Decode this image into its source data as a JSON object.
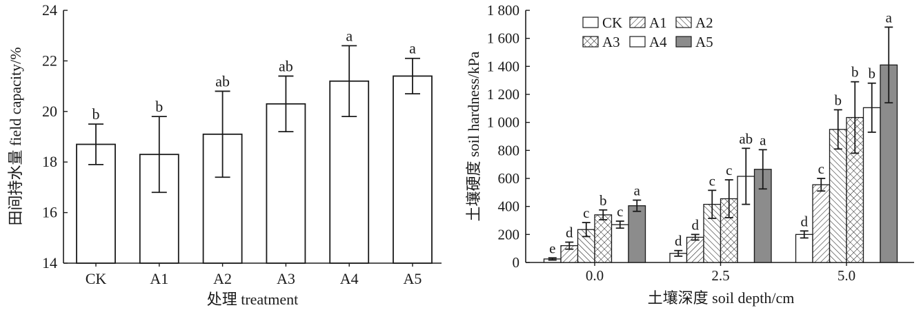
{
  "colors": {
    "ink": "#1a1a1a",
    "background": "#ffffff",
    "gray_bar": "#8c8c8c"
  },
  "chart_data": [
    {
      "type": "bar",
      "categories": [
        "CK",
        "A1",
        "A2",
        "A3",
        "A4",
        "A5"
      ],
      "values": [
        18.7,
        18.3,
        19.1,
        20.3,
        21.2,
        21.4
      ],
      "errors": [
        0.8,
        1.5,
        1.7,
        1.1,
        1.4,
        0.7
      ],
      "significance": [
        "b",
        "b",
        "ab",
        "ab",
        "a",
        "a"
      ],
      "pattern": "none",
      "xlabel": "处理 treatment",
      "ylabel": "田间持水量 field capacity/%",
      "ylim": [
        14,
        24
      ],
      "yticks": [
        14,
        16,
        18,
        20,
        22,
        24
      ],
      "ytick_labels": [
        "14",
        "16",
        "18",
        "20",
        "22",
        "24"
      ],
      "grid": false
    },
    {
      "type": "bar",
      "categories": [
        "0.0",
        "2.5",
        "5.0"
      ],
      "series": [
        {
          "name": "CK",
          "pattern": "none",
          "values": [
            25,
            65,
            200
          ],
          "errors": [
            8,
            20,
            25
          ],
          "significance": [
            "e",
            "d",
            "d"
          ]
        },
        {
          "name": "A1",
          "pattern": "diagonal-hatch",
          "values": [
            120,
            180,
            555
          ],
          "errors": [
            25,
            20,
            45
          ],
          "significance": [
            "d",
            "d",
            "c"
          ]
        },
        {
          "name": "A2",
          "pattern": "back-diagonal-hatch",
          "values": [
            235,
            415,
            950
          ],
          "errors": [
            50,
            100,
            140
          ],
          "significance": [
            "c",
            "c",
            "b"
          ]
        },
        {
          "name": "A3",
          "pattern": "crosshatch",
          "values": [
            340,
            455,
            1035
          ],
          "errors": [
            35,
            135,
            255
          ],
          "significance": [
            "b",
            "c",
            "b"
          ]
        },
        {
          "name": "A4",
          "pattern": "none",
          "values": [
            270,
            615,
            1105
          ],
          "errors": [
            25,
            200,
            175
          ],
          "significance": [
            "c",
            "ab",
            "b"
          ]
        },
        {
          "name": "A5",
          "pattern": "solid-gray",
          "values": [
            405,
            665,
            1410
          ],
          "errors": [
            40,
            140,
            270
          ],
          "significance": [
            "a",
            "a",
            "a"
          ]
        }
      ],
      "xlabel": "土壤深度 soil depth/cm",
      "ylabel": "土壤硬度 soil hardness/kPa",
      "ylim": [
        0,
        1800
      ],
      "yticks": [
        0,
        200,
        400,
        600,
        800,
        1000,
        1200,
        1400,
        1600,
        1800
      ],
      "ytick_labels": [
        "0",
        "200",
        "400",
        "600",
        "800",
        "1 000",
        "1 200",
        "1 400",
        "1 600",
        "1 800"
      ],
      "legend": "top-left",
      "grid": false
    }
  ]
}
